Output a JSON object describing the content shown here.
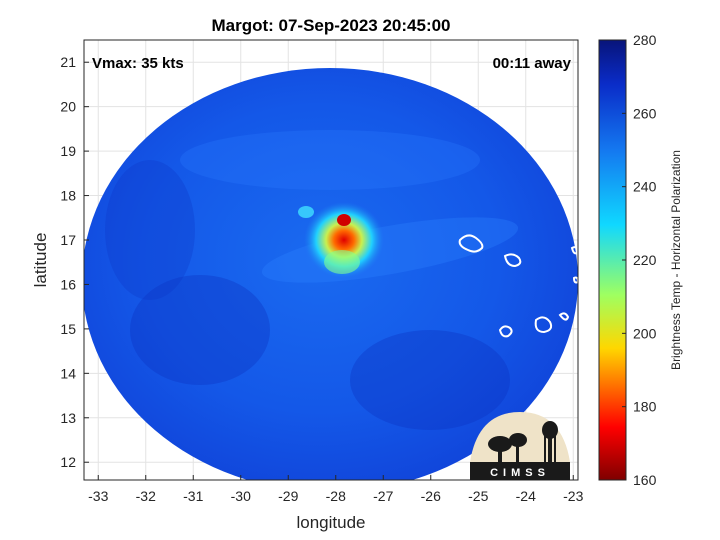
{
  "title": "Margot: 07-Sep-2023 20:45:00",
  "vmax_label": "Vmax: 35 kts",
  "away_label": "00:11 away",
  "xlabel": "longitude",
  "ylabel": "latitude",
  "colorbar": {
    "label": "Brightness Temp - Horizontal Polarization",
    "ticks": [
      160,
      180,
      200,
      220,
      240,
      260,
      280
    ],
    "range": [
      160,
      280
    ]
  },
  "map": {
    "x_ticks": [
      -33,
      -32,
      -31,
      -30,
      -29,
      -28,
      -27,
      -26,
      -25,
      -24,
      -23
    ],
    "y_ticks": [
      12,
      13,
      14,
      15,
      16,
      17,
      18,
      19,
      20,
      21
    ],
    "x_range": [
      -33.3,
      -22.9
    ],
    "y_range": [
      11.6,
      21.5
    ],
    "swath_center": [
      -27.9,
      16.6
    ],
    "storm_center": [
      -27.85,
      17.5
    ],
    "grid": true
  },
  "logo": {
    "text": "CIMSS"
  }
}
